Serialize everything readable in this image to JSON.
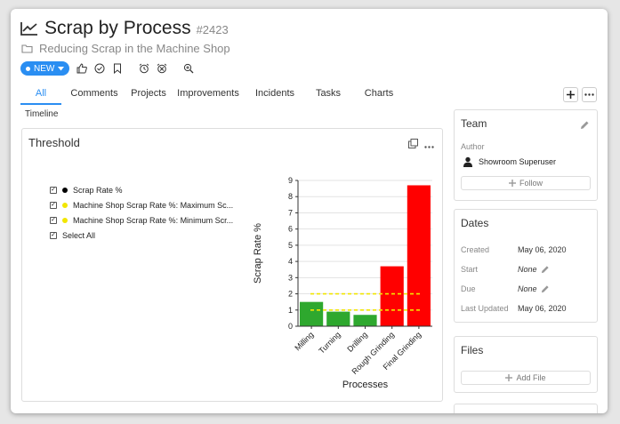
{
  "header": {
    "title": "Scrap by Process",
    "ticket_number": "#2423",
    "parent": "Reducing Scrap in the Machine Shop",
    "status": "NEW"
  },
  "tabs": [
    {
      "label": "All",
      "active": true
    },
    {
      "label": "Comments",
      "active": false
    },
    {
      "label": "Projects",
      "active": false
    },
    {
      "label": "Improvements",
      "active": false
    },
    {
      "label": "Incidents",
      "active": false
    },
    {
      "label": "Tasks",
      "active": false
    },
    {
      "label": "Charts",
      "active": false
    }
  ],
  "timeline_label": "Timeline",
  "threshold_card": {
    "title": "Threshold",
    "legend": [
      {
        "label": "Scrap Rate %",
        "color": "#000000",
        "checked": true
      },
      {
        "label": "Machine Shop Scrap Rate %: Maximum Sc...",
        "color": "#f2e600",
        "checked": true
      },
      {
        "label": "Machine Shop Scrap Rate %: Minimum Scr...",
        "color": "#f2e600",
        "checked": true
      }
    ],
    "select_all_label": "Select All"
  },
  "chart_data": {
    "type": "bar",
    "categories": [
      "Milling",
      "Turning",
      "Drilling",
      "Rough Grinding",
      "Final Grinding"
    ],
    "series": [
      {
        "name": "Scrap Rate %",
        "values": [
          1.5,
          0.9,
          0.7,
          3.7,
          8.7
        ]
      }
    ],
    "bar_colors": [
      "#2ea82e",
      "#2ea82e",
      "#2ea82e",
      "#ff0000",
      "#ff0000"
    ],
    "thresholds": [
      {
        "name": "Machine Shop Scrap Rate %: Maximum Sc...",
        "value": 2.0,
        "color": "#f2e600"
      },
      {
        "name": "Machine Shop Scrap Rate %: Minimum Scr...",
        "value": 1.0,
        "color": "#f2e600"
      }
    ],
    "xlabel": "Processes",
    "ylabel": "Scrap Rate %",
    "ylim": [
      0,
      9
    ],
    "yticks": [
      "0",
      "1",
      "2",
      "3",
      "4",
      "5",
      "6",
      "7",
      "8",
      "9"
    ],
    "grid": true
  },
  "team": {
    "title": "Team",
    "author_label": "Author",
    "author_name": "Showroom Superuser",
    "follow_label": "Follow"
  },
  "dates": {
    "title": "Dates",
    "created_label": "Created",
    "created_value": "May 06, 2020",
    "start_label": "Start",
    "start_value": "None",
    "due_label": "Due",
    "due_value": "None",
    "updated_label": "Last Updated",
    "updated_value": "May 06, 2020"
  },
  "files": {
    "title": "Files",
    "add_label": "Add File"
  }
}
